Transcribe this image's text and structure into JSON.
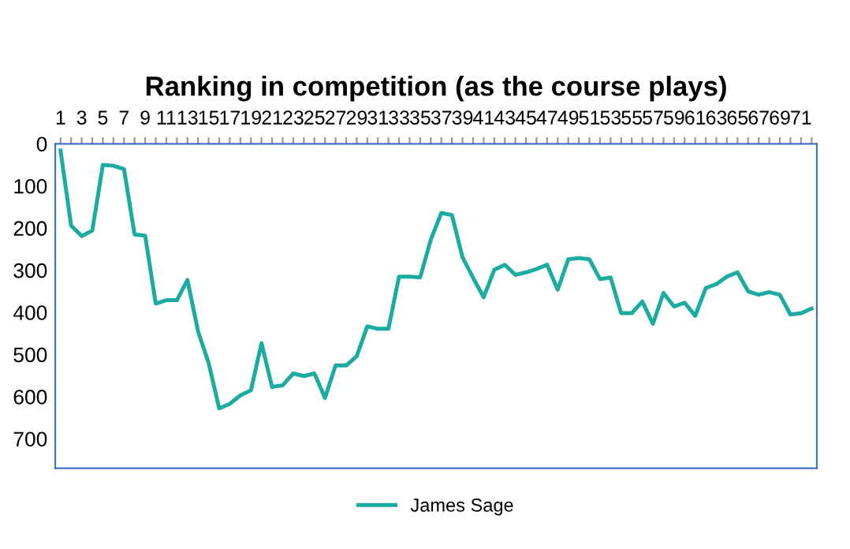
{
  "chart_data": {
    "type": "line",
    "title": "Ranking in competition (as the course plays)",
    "categories": [
      "1",
      null,
      "3",
      null,
      "5",
      null,
      "7",
      null,
      "9",
      null,
      "11",
      null,
      "13",
      null,
      "15",
      null,
      "17",
      null,
      "19",
      null,
      "21",
      null,
      "23",
      null,
      "25",
      null,
      "27",
      null,
      "29",
      null,
      "31",
      null,
      "33",
      null,
      "35",
      null,
      "37",
      null,
      "39",
      null,
      "41",
      null,
      "43",
      null,
      "45",
      null,
      "47",
      null,
      "49",
      null,
      "51",
      null,
      "53",
      null,
      "55",
      null,
      "57",
      null,
      "59",
      null,
      "61",
      null,
      "63",
      null,
      "65",
      null,
      "67",
      null,
      "69",
      null,
      "71",
      null
    ],
    "series": [
      {
        "name": "James Sage",
        "color": "#1aaca0",
        "values": [
          16,
          194,
          219,
          206,
          50,
          52,
          60,
          215,
          218,
          379,
          371,
          371,
          323,
          445,
          520,
          628,
          617,
          597,
          585,
          473,
          577,
          573,
          545,
          551,
          545,
          603,
          526,
          526,
          504,
          433,
          439,
          439,
          315,
          315,
          317,
          228,
          164,
          169,
          269,
          318,
          364,
          299,
          287,
          311,
          305,
          297,
          287,
          346,
          274,
          271,
          274,
          321,
          317,
          402,
          402,
          374,
          427,
          354,
          386,
          377,
          408,
          342,
          333,
          315,
          305,
          350,
          358,
          352,
          358,
          405,
          402,
          391
        ]
      }
    ],
    "ylim": [
      770,
      0
    ],
    "yticks": [
      0,
      100,
      200,
      300,
      400,
      500,
      600,
      700
    ],
    "grid": false,
    "legend": "bottom",
    "marker": "none",
    "line_style": "solid"
  }
}
